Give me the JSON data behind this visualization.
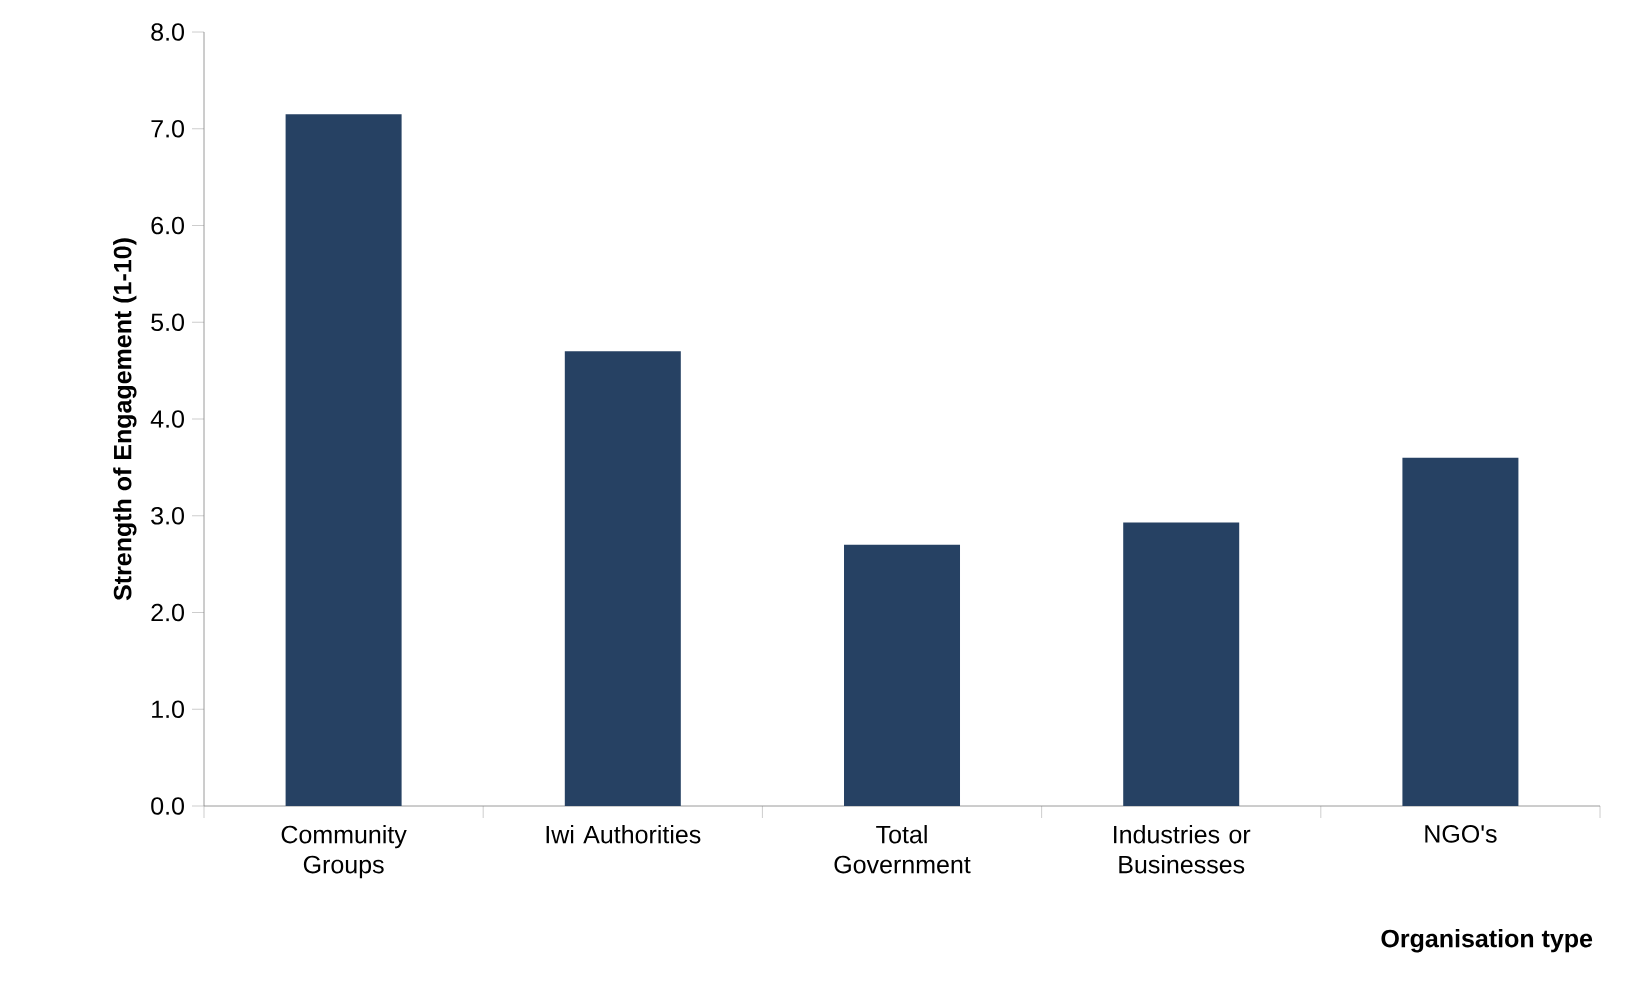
{
  "chart_data": {
    "type": "bar",
    "xlabel": "Organisation type",
    "ylabel": "Strength of Engagement (1-10)",
    "categories": [
      "Community Groups",
      "Iwi Authorities",
      "Total Government",
      "Industries or Businesses",
      "NGO's"
    ],
    "values": [
      7.15,
      4.7,
      2.7,
      2.93,
      3.6
    ],
    "color": "#264163",
    "ylim": [
      0,
      8
    ],
    "yticks": [
      {
        "value": 0,
        "label": "0.0"
      },
      {
        "value": 1,
        "label": "1.0"
      },
      {
        "value": 2,
        "label": "2.0"
      },
      {
        "value": 3,
        "label": "3.0"
      },
      {
        "value": 4,
        "label": "4.0"
      },
      {
        "value": 5,
        "label": "5.0"
      },
      {
        "value": 6,
        "label": "6.0"
      },
      {
        "value": 7,
        "label": "7.0"
      },
      {
        "value": 8,
        "label": "8.0"
      }
    ],
    "grid": false
  }
}
